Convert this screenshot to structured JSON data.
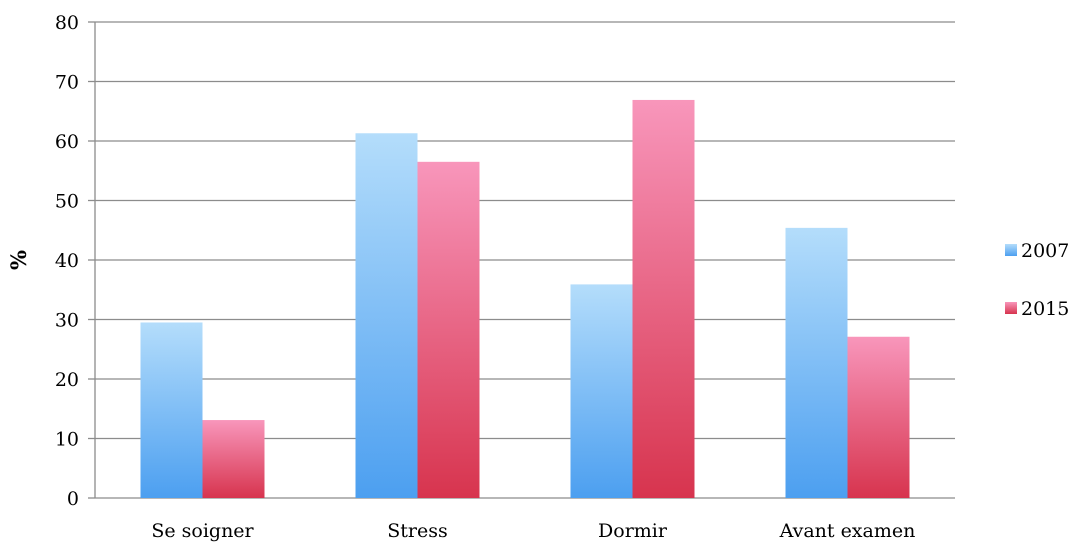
{
  "chart_data": {
    "type": "bar",
    "title": "",
    "xlabel": "",
    "ylabel": "%",
    "categories": [
      "Se soigner",
      "Stress",
      "Dormir",
      "Avant examen"
    ],
    "series": [
      {
        "name": "2007",
        "values": [
          29.5,
          61.3,
          35.9,
          45.4
        ],
        "color": "#6fb5f4"
      },
      {
        "name": "2015",
        "values": [
          13.1,
          56.5,
          66.9,
          27.1
        ],
        "color": "#e2557e"
      }
    ],
    "ylim": [
      0,
      80
    ],
    "yticks": [
      "0",
      "10",
      "20",
      "30",
      "40",
      "50",
      "60",
      "70",
      "80"
    ],
    "grid": true,
    "legend_position": "right"
  }
}
